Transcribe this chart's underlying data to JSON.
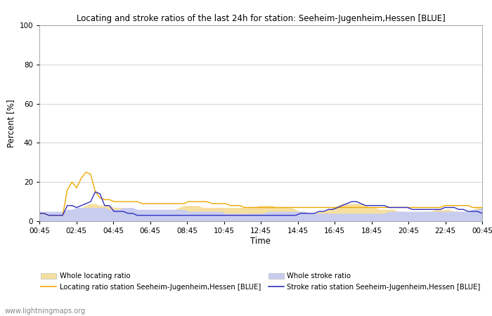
{
  "title": "Locating and stroke ratios of the last 24h for station: Seeheim-Jugenheim,Hessen [BLUE]",
  "xlabel": "Time",
  "ylabel": "Percent [%]",
  "ylim": [
    0,
    100
  ],
  "yticks": [
    0,
    20,
    40,
    60,
    80,
    100
  ],
  "xlabels": [
    "00:45",
    "02:45",
    "04:45",
    "06:45",
    "08:45",
    "10:45",
    "12:45",
    "14:45",
    "16:45",
    "18:45",
    "20:45",
    "22:45",
    "00:45"
  ],
  "watermark": "www.lightningmaps.org",
  "whole_locating_fill_color": "#f5dfa0",
  "whole_stroke_fill_color": "#c8cdf0",
  "locating_line_color": "#f0a800",
  "stroke_line_color": "#3030c0",
  "whole_locating": [
    4,
    4,
    3,
    4,
    3,
    3,
    4,
    5,
    6,
    7,
    8,
    9,
    9,
    8,
    8,
    8,
    7,
    7,
    7,
    6,
    5,
    5,
    4,
    4,
    4,
    3,
    3,
    4,
    5,
    6,
    7,
    8,
    8,
    8,
    8,
    7,
    7,
    7,
    7,
    7,
    7,
    7,
    7,
    7,
    7,
    7,
    7,
    8,
    8,
    8,
    8,
    7,
    7,
    7,
    7,
    6,
    5,
    5,
    4,
    4,
    5,
    5,
    6,
    7,
    8,
    9,
    9,
    9,
    9,
    9,
    8,
    7,
    7,
    6,
    6,
    6,
    6,
    5,
    5,
    4,
    4,
    4,
    4,
    5,
    5,
    6,
    6,
    6,
    6,
    5,
    5,
    5,
    5,
    6,
    7,
    7
  ],
  "whole_stroke": [
    5,
    5,
    5,
    5,
    5,
    5,
    6,
    6,
    7,
    7,
    7,
    7,
    7,
    7,
    7,
    6,
    6,
    6,
    7,
    7,
    7,
    6,
    6,
    6,
    6,
    6,
    6,
    6,
    6,
    6,
    6,
    6,
    5,
    5,
    5,
    5,
    5,
    5,
    5,
    5,
    4,
    4,
    4,
    4,
    4,
    4,
    4,
    4,
    4,
    5,
    5,
    5,
    5,
    5,
    5,
    5,
    5,
    5,
    4,
    4,
    4,
    4,
    4,
    4,
    4,
    4,
    4,
    4,
    4,
    4,
    4,
    4,
    4,
    4,
    4,
    5,
    5,
    5,
    5,
    5,
    5,
    5,
    5,
    5,
    5,
    5,
    5,
    5,
    5,
    5,
    5,
    5,
    5,
    6,
    6,
    7
  ],
  "locating_ratio": [
    4,
    4,
    3,
    3,
    3,
    3,
    16,
    20,
    17,
    22,
    25,
    24,
    15,
    12,
    11,
    11,
    10,
    10,
    10,
    10,
    10,
    10,
    9,
    9,
    9,
    9,
    9,
    9,
    9,
    9,
    9,
    9,
    10,
    10,
    10,
    10,
    10,
    9,
    9,
    9,
    9,
    8,
    8,
    8,
    7,
    7,
    7,
    7,
    7,
    7,
    7,
    7,
    7,
    7,
    7,
    7,
    7,
    7,
    7,
    7,
    7,
    7,
    7,
    7,
    7,
    7,
    7,
    7,
    7,
    7,
    7,
    7,
    7,
    7,
    7,
    7,
    7,
    7,
    7,
    7,
    7,
    7,
    7,
    7,
    7,
    7,
    7,
    8,
    8,
    8,
    8,
    8,
    8,
    7,
    7,
    7
  ],
  "stroke_ratio": [
    4,
    4,
    3,
    3,
    3,
    3,
    8,
    8,
    7,
    8,
    9,
    10,
    15,
    14,
    8,
    8,
    5,
    5,
    5,
    4,
    4,
    3,
    3,
    3,
    3,
    3,
    3,
    3,
    3,
    3,
    3,
    3,
    3,
    3,
    3,
    3,
    3,
    3,
    3,
    3,
    3,
    3,
    3,
    3,
    3,
    3,
    3,
    3,
    3,
    3,
    3,
    3,
    3,
    3,
    3,
    3,
    4,
    4,
    4,
    4,
    5,
    5,
    6,
    6,
    7,
    8,
    9,
    10,
    10,
    9,
    8,
    8,
    8,
    8,
    8,
    7,
    7,
    7,
    7,
    7,
    6,
    6,
    6,
    6,
    6,
    6,
    6,
    7,
    7,
    7,
    6,
    6,
    5,
    5,
    5,
    4
  ],
  "n_points": 96
}
